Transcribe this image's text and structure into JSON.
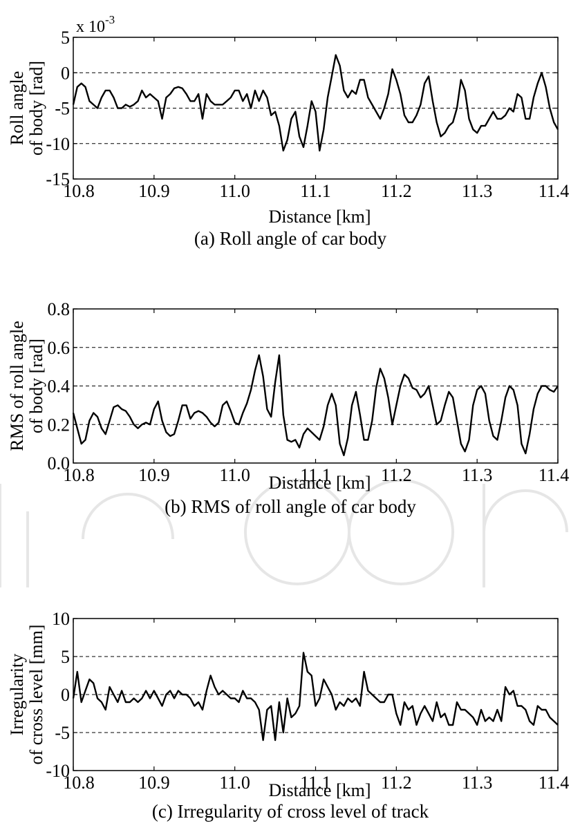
{
  "chart_data": [
    {
      "type": "line",
      "panel": "(a)",
      "caption": "(a) Roll angle of car body",
      "title": "",
      "xlabel": "Distance [km]",
      "ylabel": [
        "Roll angle",
        "of body [rad]"
      ],
      "exponent_label": {
        "base": "x 10",
        "exp": "-3"
      },
      "xlim": [
        10.8,
        11.4
      ],
      "ylim": [
        -15,
        5
      ],
      "xticks": [
        "10.8",
        "10.9",
        "11.0",
        "11.1",
        "11.2",
        "11.3",
        "11.4"
      ],
      "yticks": [
        "5",
        "0",
        "-5",
        "-10",
        "-15"
      ],
      "grid": "dashed horizontal at y-ticks",
      "series": [
        {
          "values": {
            "x": [
              10.8,
              10.805,
              10.81,
              10.815,
              10.82,
              10.825,
              10.83,
              10.835,
              10.84,
              10.845,
              10.85,
              10.855,
              10.86,
              10.865,
              10.87,
              10.875,
              10.88,
              10.885,
              10.89,
              10.895,
              10.9,
              10.905,
              10.91,
              10.915,
              10.92,
              10.925,
              10.93,
              10.935,
              10.94,
              10.945,
              10.95,
              10.955,
              10.96,
              10.965,
              10.97,
              10.975,
              10.98,
              10.985,
              10.99,
              10.995,
              11.0,
              11.005,
              11.01,
              11.015,
              11.02,
              11.025,
              11.03,
              11.035,
              11.04,
              11.045,
              11.05,
              11.055,
              11.06,
              11.065,
              11.07,
              11.075,
              11.08,
              11.085,
              11.09,
              11.095,
              11.1,
              11.105,
              11.11,
              11.115,
              11.12,
              11.125,
              11.13,
              11.135,
              11.14,
              11.145,
              11.15,
              11.155,
              11.16,
              11.165,
              11.17,
              11.175,
              11.18,
              11.185,
              11.19,
              11.195,
              11.2,
              11.205,
              11.21,
              11.215,
              11.22,
              11.225,
              11.23,
              11.235,
              11.24,
              11.245,
              11.25,
              11.255,
              11.26,
              11.265,
              11.27,
              11.275,
              11.28,
              11.285,
              11.29,
              11.295,
              11.3,
              11.305,
              11.31,
              11.315,
              11.32,
              11.325,
              11.33,
              11.335,
              11.34,
              11.345,
              11.35,
              11.355,
              11.36,
              11.365,
              11.37,
              11.375,
              11.38,
              11.385,
              11.39,
              11.395,
              11.4
            ],
            "y": [
              -4.5,
              -2.0,
              -1.5,
              -2.0,
              -4.0,
              -4.5,
              -5.0,
              -3.5,
              -2.5,
              -2.5,
              -3.5,
              -5.0,
              -5.0,
              -4.5,
              -4.8,
              -4.5,
              -4.0,
              -2.5,
              -3.5,
              -3.0,
              -3.5,
              -4.0,
              -6.5,
              -3.5,
              -3.0,
              -2.2,
              -2.0,
              -2.2,
              -3.0,
              -4.0,
              -4.0,
              -3.0,
              -6.5,
              -3.0,
              -4.0,
              -4.5,
              -4.5,
              -4.5,
              -4.0,
              -3.5,
              -2.5,
              -2.5,
              -4.0,
              -3.0,
              -5.0,
              -2.5,
              -4.0,
              -2.5,
              -3.5,
              -6.0,
              -5.5,
              -7.5,
              -11.0,
              -9.5,
              -6.5,
              -5.5,
              -9.0,
              -10.5,
              -7.5,
              -4.0,
              -5.5,
              -11.0,
              -8.0,
              -3.5,
              -0.5,
              2.5,
              1.0,
              -2.5,
              -3.5,
              -2.5,
              -3.0,
              -1.0,
              -1.0,
              -3.5,
              -4.5,
              -5.5,
              -6.5,
              -5.0,
              -3.0,
              0.5,
              -1.0,
              -3.0,
              -6.0,
              -7.0,
              -7.0,
              -6.0,
              -4.5,
              -1.5,
              -0.5,
              -4.0,
              -7.0,
              -9.0,
              -8.5,
              -7.5,
              -7.0,
              -5.0,
              -1.0,
              -2.5,
              -6.5,
              -8.0,
              -8.5,
              -7.5,
              -7.5,
              -6.5,
              -5.5,
              -6.5,
              -6.5,
              -6.0,
              -5.0,
              -5.5,
              -3.0,
              -3.5,
              -6.5,
              -6.5,
              -3.5,
              -1.5,
              0.0,
              -2.0,
              -5.0,
              -7.0,
              -8.0
            ]
          }
        }
      ]
    },
    {
      "type": "line",
      "panel": "(b)",
      "caption": "(b) RMS of roll angle of car body",
      "title": "",
      "xlabel": "Distance [km]",
      "ylabel": [
        "RMS of roll angle",
        "of body [rad]"
      ],
      "xlim": [
        10.8,
        11.4
      ],
      "ylim": [
        0.0,
        0.8
      ],
      "xticks": [
        "10.8",
        "10.9",
        "11.0",
        "11.1",
        "11.2",
        "11.3",
        "11.4"
      ],
      "yticks": [
        "0.8",
        "0.6",
        "0.4",
        "0.2",
        "0.0"
      ],
      "grid": "dashed horizontal at y-ticks",
      "series": [
        {
          "values": {
            "x": [
              10.8,
              10.805,
              10.81,
              10.815,
              10.82,
              10.825,
              10.83,
              10.835,
              10.84,
              10.845,
              10.85,
              10.855,
              10.86,
              10.865,
              10.87,
              10.875,
              10.88,
              10.885,
              10.89,
              10.895,
              10.9,
              10.905,
              10.91,
              10.915,
              10.92,
              10.925,
              10.93,
              10.935,
              10.94,
              10.945,
              10.95,
              10.955,
              10.96,
              10.965,
              10.97,
              10.975,
              10.98,
              10.985,
              10.99,
              10.995,
              11.0,
              11.005,
              11.01,
              11.015,
              11.02,
              11.025,
              11.03,
              11.035,
              11.04,
              11.045,
              11.05,
              11.055,
              11.06,
              11.065,
              11.07,
              11.075,
              11.08,
              11.085,
              11.09,
              11.095,
              11.1,
              11.105,
              11.11,
              11.115,
              11.12,
              11.125,
              11.13,
              11.135,
              11.14,
              11.145,
              11.15,
              11.155,
              11.16,
              11.165,
              11.17,
              11.175,
              11.18,
              11.185,
              11.19,
              11.195,
              11.2,
              11.205,
              11.21,
              11.215,
              11.22,
              11.225,
              11.23,
              11.235,
              11.24,
              11.245,
              11.25,
              11.255,
              11.26,
              11.265,
              11.27,
              11.275,
              11.28,
              11.285,
              11.29,
              11.295,
              11.3,
              11.305,
              11.31,
              11.315,
              11.32,
              11.325,
              11.33,
              11.335,
              11.34,
              11.345,
              11.35,
              11.355,
              11.36,
              11.365,
              11.37,
              11.375,
              11.38,
              11.385,
              11.39,
              11.395,
              11.4
            ],
            "y": [
              0.26,
              0.18,
              0.1,
              0.12,
              0.22,
              0.26,
              0.24,
              0.18,
              0.15,
              0.22,
              0.29,
              0.3,
              0.28,
              0.27,
              0.24,
              0.2,
              0.18,
              0.2,
              0.21,
              0.2,
              0.28,
              0.32,
              0.22,
              0.16,
              0.14,
              0.15,
              0.22,
              0.3,
              0.3,
              0.23,
              0.26,
              0.27,
              0.26,
              0.24,
              0.21,
              0.19,
              0.21,
              0.3,
              0.32,
              0.27,
              0.21,
              0.2,
              0.26,
              0.31,
              0.38,
              0.48,
              0.56,
              0.45,
              0.28,
              0.24,
              0.42,
              0.56,
              0.25,
              0.12,
              0.11,
              0.12,
              0.08,
              0.15,
              0.18,
              0.16,
              0.14,
              0.12,
              0.19,
              0.3,
              0.36,
              0.3,
              0.1,
              0.04,
              0.13,
              0.3,
              0.37,
              0.25,
              0.12,
              0.12,
              0.22,
              0.39,
              0.49,
              0.44,
              0.34,
              0.2,
              0.3,
              0.4,
              0.46,
              0.44,
              0.39,
              0.38,
              0.34,
              0.36,
              0.4,
              0.3,
              0.2,
              0.22,
              0.3,
              0.37,
              0.34,
              0.22,
              0.1,
              0.06,
              0.12,
              0.3,
              0.38,
              0.4,
              0.36,
              0.22,
              0.14,
              0.12,
              0.22,
              0.34,
              0.4,
              0.38,
              0.3,
              0.1,
              0.05,
              0.15,
              0.28,
              0.36,
              0.4,
              0.4,
              0.38,
              0.37,
              0.4
            ]
          }
        }
      ]
    },
    {
      "type": "line",
      "panel": "(c)",
      "caption": "(c) Irregularity of cross level of track",
      "title": "",
      "xlabel": "Distance [km]",
      "ylabel": [
        "Irregularity",
        "of cross level [mm]"
      ],
      "xlim": [
        10.8,
        11.4
      ],
      "ylim": [
        -10,
        10
      ],
      "xticks": [
        "10.8",
        "10.9",
        "11.0",
        "11.1",
        "11.2",
        "11.3",
        "11.4"
      ],
      "yticks": [
        "10",
        "5",
        "0",
        "-5",
        "-10"
      ],
      "grid": "dashed horizontal at y-ticks",
      "series": [
        {
          "values": {
            "x": [
              10.8,
              10.805,
              10.81,
              10.815,
              10.82,
              10.825,
              10.83,
              10.835,
              10.84,
              10.845,
              10.85,
              10.855,
              10.86,
              10.865,
              10.87,
              10.875,
              10.88,
              10.885,
              10.89,
              10.895,
              10.9,
              10.905,
              10.91,
              10.915,
              10.92,
              10.925,
              10.93,
              10.935,
              10.94,
              10.945,
              10.95,
              10.955,
              10.96,
              10.965,
              10.97,
              10.975,
              10.98,
              10.985,
              10.99,
              10.995,
              11.0,
              11.005,
              11.01,
              11.015,
              11.02,
              11.025,
              11.03,
              11.035,
              11.04,
              11.045,
              11.05,
              11.055,
              11.06,
              11.065,
              11.07,
              11.075,
              11.08,
              11.085,
              11.09,
              11.095,
              11.1,
              11.105,
              11.11,
              11.115,
              11.12,
              11.125,
              11.13,
              11.135,
              11.14,
              11.145,
              11.15,
              11.155,
              11.16,
              11.165,
              11.17,
              11.175,
              11.18,
              11.185,
              11.19,
              11.195,
              11.2,
              11.205,
              11.21,
              11.215,
              11.22,
              11.225,
              11.23,
              11.235,
              11.24,
              11.245,
              11.25,
              11.255,
              11.26,
              11.265,
              11.27,
              11.275,
              11.28,
              11.285,
              11.29,
              11.295,
              11.3,
              11.305,
              11.31,
              11.315,
              11.32,
              11.325,
              11.33,
              11.335,
              11.34,
              11.345,
              11.35,
              11.355,
              11.36,
              11.365,
              11.37,
              11.375,
              11.38,
              11.385,
              11.39,
              11.395,
              11.4
            ],
            "y": [
              -0.5,
              3.0,
              -1.0,
              0.5,
              2.0,
              1.5,
              -0.5,
              -1.0,
              -2.0,
              1.0,
              0.0,
              -1.0,
              0.5,
              -1.0,
              -1.0,
              -0.5,
              -1.0,
              -0.5,
              0.5,
              -0.5,
              0.5,
              -0.5,
              -1.5,
              0.0,
              0.5,
              -0.5,
              0.5,
              0.0,
              0.0,
              -0.5,
              -1.5,
              -1.0,
              -2.0,
              0.5,
              2.5,
              1.0,
              0.0,
              0.5,
              0.0,
              -0.5,
              -0.5,
              -1.0,
              0.5,
              -0.5,
              -0.5,
              -1.0,
              -2.0,
              -6.0,
              -2.0,
              -1.5,
              -6.0,
              -1.0,
              -5.0,
              -0.5,
              -3.0,
              -2.5,
              -1.5,
              5.5,
              3.0,
              2.5,
              -1.5,
              -0.5,
              2.0,
              1.0,
              0.0,
              -2.0,
              -1.0,
              -1.5,
              -0.5,
              -1.0,
              -0.5,
              -1.5,
              3.0,
              0.5,
              0.0,
              -0.5,
              -1.0,
              -1.0,
              0.0,
              0.0,
              -2.5,
              -4.0,
              -1.0,
              -2.0,
              -1.5,
              -4.0,
              -2.5,
              -1.5,
              -2.5,
              -3.5,
              -1.0,
              -3.0,
              -2.5,
              -4.0,
              -4.0,
              -1.0,
              -2.0,
              -2.0,
              -2.5,
              -3.0,
              -4.0,
              -2.0,
              -3.5,
              -3.0,
              -3.5,
              -2.0,
              -3.5,
              1.0,
              0.0,
              0.5,
              -1.5,
              -1.5,
              -2.0,
              -3.5,
              -4.0,
              -1.5,
              -2.0,
              -2.0,
              -3.0,
              -3.5,
              -4.0
            ]
          }
        }
      ]
    }
  ]
}
